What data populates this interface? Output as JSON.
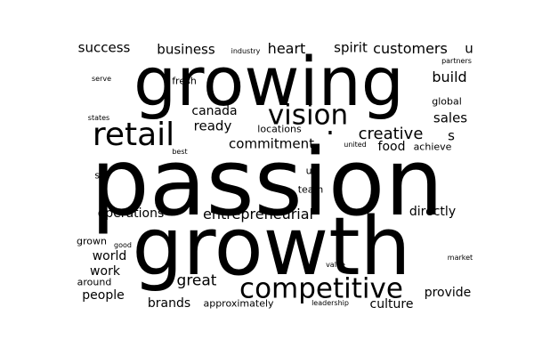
{
  "canvas": {
    "background": "#ffffff",
    "text_color": "#000000"
  },
  "words": [
    {
      "text": "passion"
    },
    {
      "text": "growth"
    },
    {
      "text": "growing"
    },
    {
      "text": "competitive"
    },
    {
      "text": "retail"
    },
    {
      "text": "vision"
    },
    {
      "text": "creative"
    },
    {
      "text": "entrepreneurial"
    },
    {
      "text": "commitment"
    },
    {
      "text": "great"
    },
    {
      "text": "success"
    },
    {
      "text": "business"
    },
    {
      "text": "heart"
    },
    {
      "text": "spirit"
    },
    {
      "text": "customers"
    },
    {
      "text": "u"
    },
    {
      "text": "build"
    },
    {
      "text": "canada"
    },
    {
      "text": "ready"
    },
    {
      "text": "sales"
    },
    {
      "text": "s"
    },
    {
      "text": "food"
    },
    {
      "text": "operations"
    },
    {
      "text": "directly"
    },
    {
      "text": "world"
    },
    {
      "text": "work"
    },
    {
      "text": "people"
    },
    {
      "text": "brands"
    },
    {
      "text": "culture"
    },
    {
      "text": "provide"
    },
    {
      "text": "global"
    },
    {
      "text": "fresh"
    },
    {
      "text": "locations"
    },
    {
      "text": "achieve"
    },
    {
      "text": "approximately"
    },
    {
      "text": "us"
    },
    {
      "text": "team"
    },
    {
      "text": "six"
    },
    {
      "text": "grown"
    },
    {
      "text": "around"
    },
    {
      "text": "industry"
    },
    {
      "text": "partners"
    },
    {
      "text": "serve"
    },
    {
      "text": "states"
    },
    {
      "text": "best"
    },
    {
      "text": "united"
    },
    {
      "text": "good"
    },
    {
      "text": "value"
    },
    {
      "text": "leadership"
    },
    {
      "text": "market"
    },
    {
      "text": "."
    }
  ]
}
